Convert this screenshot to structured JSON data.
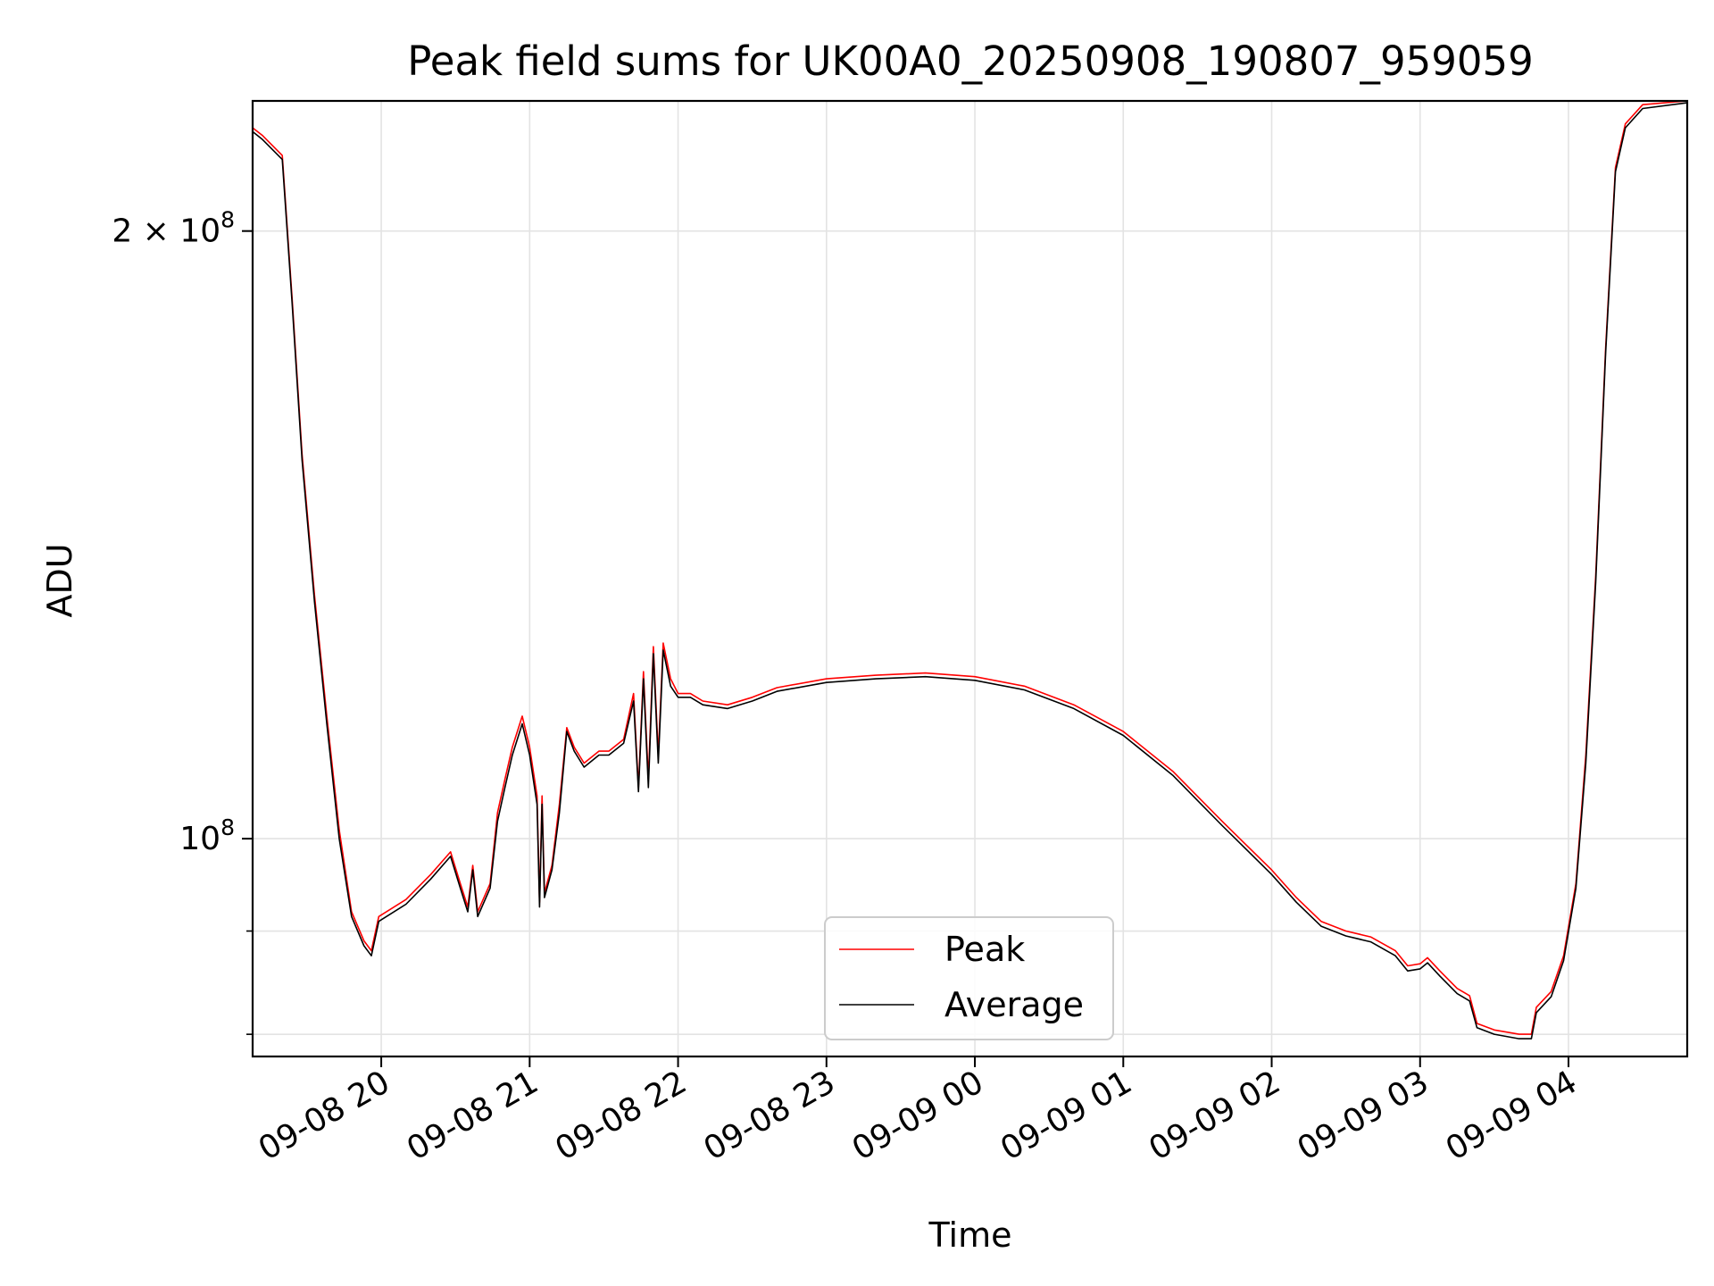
{
  "chart_data": {
    "type": "line",
    "title": "Peak field sums for UK00A0_20250908_190807_959059",
    "xlabel": "Time",
    "ylabel": "ADU",
    "yscale": "log",
    "xlim": [
      "2025-09-08 19:08",
      "2025-09-09 04:48"
    ],
    "ylim": [
      78000000,
      232000000
    ],
    "x_ticks": [
      {
        "t": "2025-09-08 20:00",
        "label": "09-08 20"
      },
      {
        "t": "2025-09-08 21:00",
        "label": "09-08 21"
      },
      {
        "t": "2025-09-08 22:00",
        "label": "09-08 22"
      },
      {
        "t": "2025-09-08 23:00",
        "label": "09-08 23"
      },
      {
        "t": "2025-09-09 00:00",
        "label": "09-09 00"
      },
      {
        "t": "2025-09-09 01:00",
        "label": "09-09 01"
      },
      {
        "t": "2025-09-09 02:00",
        "label": "09-09 02"
      },
      {
        "t": "2025-09-09 03:00",
        "label": "09-09 03"
      },
      {
        "t": "2025-09-09 04:00",
        "label": "09-09 04"
      }
    ],
    "y_major_ticks": [
      {
        "value": 100000000,
        "base": "10",
        "exp": "8",
        "mult": ""
      },
      {
        "value": 200000000,
        "base": "10",
        "exp": "8",
        "mult": "2 × "
      }
    ],
    "y_minor_ticks": [
      80000000,
      90000000
    ],
    "grid": true,
    "legend_position": "lower-center",
    "series": [
      {
        "name": "Peak",
        "color": "#ff0000",
        "points": [
          [
            "2025-09-08 19:08",
            225000000
          ],
          [
            "2025-09-08 19:12",
            223000000
          ],
          [
            "2025-09-08 19:20",
            218000000
          ],
          [
            "2025-09-08 19:24",
            185000000
          ],
          [
            "2025-09-08 19:28",
            155000000
          ],
          [
            "2025-09-08 19:33",
            132000000
          ],
          [
            "2025-09-08 19:38",
            115000000
          ],
          [
            "2025-09-08 19:43",
            101000000
          ],
          [
            "2025-09-08 19:48",
            92000000
          ],
          [
            "2025-09-08 19:53",
            89000000
          ],
          [
            "2025-09-08 19:56",
            88000000
          ],
          [
            "2025-09-08 19:59",
            91500000
          ],
          [
            "2025-09-08 20:10",
            93300000
          ],
          [
            "2025-09-08 20:20",
            96000000
          ],
          [
            "2025-09-08 20:28",
            98500000
          ],
          [
            "2025-09-08 20:32",
            95000000
          ],
          [
            "2025-09-08 20:35",
            92500000
          ],
          [
            "2025-09-08 20:37",
            97000000
          ],
          [
            "2025-09-08 20:39",
            92000000
          ],
          [
            "2025-09-08 20:44",
            95000000
          ],
          [
            "2025-09-08 20:47",
            103000000
          ],
          [
            "2025-09-08 20:50",
            107000000
          ],
          [
            "2025-09-08 20:53",
            111000000
          ],
          [
            "2025-09-08 20:57",
            115000000
          ],
          [
            "2025-09-08 21:00",
            111000000
          ],
          [
            "2025-09-08 21:03",
            105000000
          ],
          [
            "2025-09-08 21:04",
            93000000
          ],
          [
            "2025-09-08 21:05",
            105000000
          ],
          [
            "2025-09-08 21:06",
            94000000
          ],
          [
            "2025-09-08 21:09",
            97000000
          ],
          [
            "2025-09-08 21:12",
            104000000
          ],
          [
            "2025-09-08 21:15",
            113500000
          ],
          [
            "2025-09-08 21:18",
            111000000
          ],
          [
            "2025-09-08 21:22",
            109000000
          ],
          [
            "2025-09-08 21:28",
            110500000
          ],
          [
            "2025-09-08 21:32",
            110500000
          ],
          [
            "2025-09-08 21:38",
            112000000
          ],
          [
            "2025-09-08 21:42",
            118000000
          ],
          [
            "2025-09-08 21:44",
            106000000
          ],
          [
            "2025-09-08 21:46",
            121000000
          ],
          [
            "2025-09-08 21:48",
            107000000
          ],
          [
            "2025-09-08 21:50",
            124500000
          ],
          [
            "2025-09-08 21:52",
            110000000
          ],
          [
            "2025-09-08 21:54",
            125000000
          ],
          [
            "2025-09-08 21:57",
            120000000
          ],
          [
            "2025-09-08 22:00",
            118000000
          ],
          [
            "2025-09-08 22:05",
            118000000
          ],
          [
            "2025-09-08 22:10",
            117000000
          ],
          [
            "2025-09-08 22:20",
            116500000
          ],
          [
            "2025-09-08 22:30",
            117500000
          ],
          [
            "2025-09-08 22:40",
            118800000
          ],
          [
            "2025-09-08 23:00",
            120000000
          ],
          [
            "2025-09-08 23:20",
            120500000
          ],
          [
            "2025-09-08 23:40",
            120800000
          ],
          [
            "2025-09-09 00:00",
            120300000
          ],
          [
            "2025-09-09 00:20",
            119000000
          ],
          [
            "2025-09-09 00:40",
            116500000
          ],
          [
            "2025-09-09 01:00",
            113000000
          ],
          [
            "2025-09-09 01:20",
            108000000
          ],
          [
            "2025-09-09 01:40",
            102000000
          ],
          [
            "2025-09-09 02:00",
            96500000
          ],
          [
            "2025-09-09 02:10",
            93500000
          ],
          [
            "2025-09-09 02:20",
            91000000
          ],
          [
            "2025-09-09 02:30",
            90000000
          ],
          [
            "2025-09-09 02:40",
            89400000
          ],
          [
            "2025-09-09 02:50",
            88000000
          ],
          [
            "2025-09-09 02:55",
            86500000
          ],
          [
            "2025-09-09 03:00",
            86700000
          ],
          [
            "2025-09-09 03:03",
            87300000
          ],
          [
            "2025-09-09 03:08",
            86000000
          ],
          [
            "2025-09-09 03:15",
            84300000
          ],
          [
            "2025-09-09 03:20",
            83600000
          ],
          [
            "2025-09-09 03:23",
            81000000
          ],
          [
            "2025-09-09 03:30",
            80400000
          ],
          [
            "2025-09-09 03:40",
            80000000
          ],
          [
            "2025-09-09 03:45",
            80000000
          ],
          [
            "2025-09-09 03:47",
            82500000
          ],
          [
            "2025-09-09 03:53",
            84000000
          ],
          [
            "2025-09-09 03:58",
            87500000
          ],
          [
            "2025-09-09 04:03",
            95000000
          ],
          [
            "2025-09-09 04:07",
            110000000
          ],
          [
            "2025-09-09 04:11",
            135000000
          ],
          [
            "2025-09-09 04:15",
            175000000
          ],
          [
            "2025-09-09 04:19",
            215000000
          ],
          [
            "2025-09-09 04:23",
            226000000
          ],
          [
            "2025-09-09 04:30",
            231000000
          ],
          [
            "2025-09-09 04:48",
            232000000
          ]
        ]
      },
      {
        "name": "Average",
        "color": "#000000",
        "points": [
          [
            "2025-09-08 19:08",
            224000000
          ],
          [
            "2025-09-08 19:12",
            222000000
          ],
          [
            "2025-09-08 19:20",
            217000000
          ],
          [
            "2025-09-08 19:24",
            184000000
          ],
          [
            "2025-09-08 19:28",
            154000000
          ],
          [
            "2025-09-08 19:33",
            131000000
          ],
          [
            "2025-09-08 19:38",
            114000000
          ],
          [
            "2025-09-08 19:43",
            100000000
          ],
          [
            "2025-09-08 19:48",
            91500000
          ],
          [
            "2025-09-08 19:53",
            88500000
          ],
          [
            "2025-09-08 19:56",
            87500000
          ],
          [
            "2025-09-08 19:59",
            91000000
          ],
          [
            "2025-09-08 20:10",
            92800000
          ],
          [
            "2025-09-08 20:20",
            95500000
          ],
          [
            "2025-09-08 20:28",
            98000000
          ],
          [
            "2025-09-08 20:32",
            94500000
          ],
          [
            "2025-09-08 20:35",
            92000000
          ],
          [
            "2025-09-08 20:37",
            96500000
          ],
          [
            "2025-09-08 20:39",
            91500000
          ],
          [
            "2025-09-08 20:44",
            94500000
          ],
          [
            "2025-09-08 20:47",
            102000000
          ],
          [
            "2025-09-08 20:50",
            106000000
          ],
          [
            "2025-09-08 20:53",
            110000000
          ],
          [
            "2025-09-08 20:57",
            114000000
          ],
          [
            "2025-09-08 21:00",
            110000000
          ],
          [
            "2025-09-08 21:03",
            104000000
          ],
          [
            "2025-09-08 21:04",
            92500000
          ],
          [
            "2025-09-08 21:05",
            104000000
          ],
          [
            "2025-09-08 21:06",
            93500000
          ],
          [
            "2025-09-08 21:09",
            96500000
          ],
          [
            "2025-09-08 21:12",
            103000000
          ],
          [
            "2025-09-08 21:15",
            113000000
          ],
          [
            "2025-09-08 21:18",
            110500000
          ],
          [
            "2025-09-08 21:22",
            108500000
          ],
          [
            "2025-09-08 21:28",
            110000000
          ],
          [
            "2025-09-08 21:32",
            110000000
          ],
          [
            "2025-09-08 21:38",
            111500000
          ],
          [
            "2025-09-08 21:42",
            117000000
          ],
          [
            "2025-09-08 21:44",
            105500000
          ],
          [
            "2025-09-08 21:46",
            120000000
          ],
          [
            "2025-09-08 21:48",
            106000000
          ],
          [
            "2025-09-08 21:50",
            123500000
          ],
          [
            "2025-09-08 21:52",
            109000000
          ],
          [
            "2025-09-08 21:54",
            124000000
          ],
          [
            "2025-09-08 21:57",
            119000000
          ],
          [
            "2025-09-08 22:00",
            117500000
          ],
          [
            "2025-09-08 22:05",
            117500000
          ],
          [
            "2025-09-08 22:10",
            116500000
          ],
          [
            "2025-09-08 22:20",
            116000000
          ],
          [
            "2025-09-08 22:30",
            117000000
          ],
          [
            "2025-09-08 22:40",
            118300000
          ],
          [
            "2025-09-08 23:00",
            119500000
          ],
          [
            "2025-09-08 23:20",
            120000000
          ],
          [
            "2025-09-08 23:40",
            120300000
          ],
          [
            "2025-09-09 00:00",
            119800000
          ],
          [
            "2025-09-09 00:20",
            118500000
          ],
          [
            "2025-09-09 00:40",
            116000000
          ],
          [
            "2025-09-09 01:00",
            112500000
          ],
          [
            "2025-09-09 01:20",
            107500000
          ],
          [
            "2025-09-09 01:40",
            101500000
          ],
          [
            "2025-09-09 02:00",
            96000000
          ],
          [
            "2025-09-09 02:10",
            93000000
          ],
          [
            "2025-09-09 02:20",
            90500000
          ],
          [
            "2025-09-09 02:30",
            89500000
          ],
          [
            "2025-09-09 02:40",
            88900000
          ],
          [
            "2025-09-09 02:50",
            87500000
          ],
          [
            "2025-09-09 02:55",
            86000000
          ],
          [
            "2025-09-09 03:00",
            86200000
          ],
          [
            "2025-09-09 03:03",
            86800000
          ],
          [
            "2025-09-09 03:08",
            85500000
          ],
          [
            "2025-09-09 03:15",
            83800000
          ],
          [
            "2025-09-09 03:20",
            83100000
          ],
          [
            "2025-09-09 03:23",
            80600000
          ],
          [
            "2025-09-09 03:30",
            80000000
          ],
          [
            "2025-09-09 03:40",
            79600000
          ],
          [
            "2025-09-09 03:45",
            79600000
          ],
          [
            "2025-09-09 03:47",
            82000000
          ],
          [
            "2025-09-09 03:53",
            83500000
          ],
          [
            "2025-09-09 03:58",
            87000000
          ],
          [
            "2025-09-09 04:03",
            94500000
          ],
          [
            "2025-09-09 04:07",
            109000000
          ],
          [
            "2025-09-09 04:11",
            134000000
          ],
          [
            "2025-09-09 04:15",
            174000000
          ],
          [
            "2025-09-09 04:19",
            214000000
          ],
          [
            "2025-09-09 04:23",
            225000000
          ],
          [
            "2025-09-09 04:30",
            230000000
          ],
          [
            "2025-09-09 04:48",
            231500000
          ]
        ]
      }
    ]
  }
}
